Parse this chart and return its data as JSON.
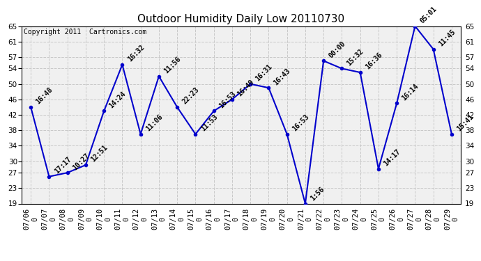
{
  "title": "Outdoor Humidity Daily Low 20110730",
  "copyright": "Copyright 2011  Cartronics.com",
  "dates": [
    "07/06",
    "07/07",
    "07/08",
    "07/09",
    "07/10",
    "07/11",
    "07/12",
    "07/13",
    "07/14",
    "07/15",
    "07/16",
    "07/17",
    "07/18",
    "07/19",
    "07/20",
    "07/21",
    "07/22",
    "07/23",
    "07/24",
    "07/25",
    "07/26",
    "07/27",
    "07/28",
    "07/29"
  ],
  "values": [
    44,
    26,
    27,
    29,
    43,
    55,
    37,
    52,
    44,
    37,
    43,
    46,
    50,
    49,
    37,
    19,
    56,
    54,
    53,
    28,
    45,
    65,
    59,
    37
  ],
  "times": [
    "16:48",
    "17:17",
    "10:27",
    "12:51",
    "14:24",
    "16:32",
    "11:06",
    "11:56",
    "22:23",
    "11:53",
    "16:53",
    "16:49",
    "16:31",
    "16:43",
    "16:53",
    "1:56",
    "00:00",
    "15:32",
    "16:36",
    "14:17",
    "16:14",
    "05:01",
    "11:45",
    "15:41"
  ],
  "line_color": "#0000cc",
  "bg_color": "#ffffff",
  "plot_bg_color": "#f0f0f0",
  "grid_color": "#c8c8c8",
  "yticks": [
    19,
    23,
    27,
    30,
    34,
    38,
    42,
    46,
    50,
    54,
    57,
    61,
    65
  ],
  "ymin": 19,
  "ymax": 65,
  "title_fontsize": 11,
  "copyright_fontsize": 7,
  "annot_fontsize": 7,
  "tick_fontsize": 7.5
}
